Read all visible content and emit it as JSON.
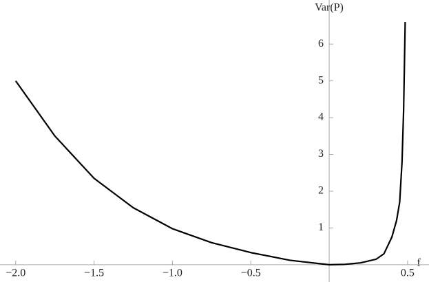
{
  "chart_data": {
    "type": "line",
    "xlabel": "f",
    "ylabel": "Var(P)",
    "x": [
      -2,
      -1.75,
      -1.5,
      -1.25,
      -1,
      -0.75,
      -0.5,
      -0.25,
      0,
      0.1,
      0.2,
      0.3,
      0.35,
      0.4,
      0.43,
      0.45,
      0.465,
      0.475,
      0.485
    ],
    "series": [
      {
        "color": "#000000",
        "values": [
          5,
          3.5,
          2.35,
          1.55,
          0.98,
          0.6,
          0.33,
          0.12,
          0,
          0.01,
          0.05,
          0.15,
          0.3,
          0.75,
          1.2,
          1.7,
          2.8,
          4.2,
          6.6
        ]
      }
    ],
    "xlim": [
      -2.1,
      0.637
    ],
    "ylim": [
      -0.47,
      7.2
    ],
    "xticks": [
      {
        "value": -2,
        "label": "−2.0"
      },
      {
        "value": -1.5,
        "label": "−1.5"
      },
      {
        "value": -1,
        "label": "−1.0"
      },
      {
        "value": -0.5,
        "label": "−0.5"
      },
      0.5
    ],
    "yticks": [
      1,
      2,
      3,
      4,
      5,
      6
    ]
  }
}
